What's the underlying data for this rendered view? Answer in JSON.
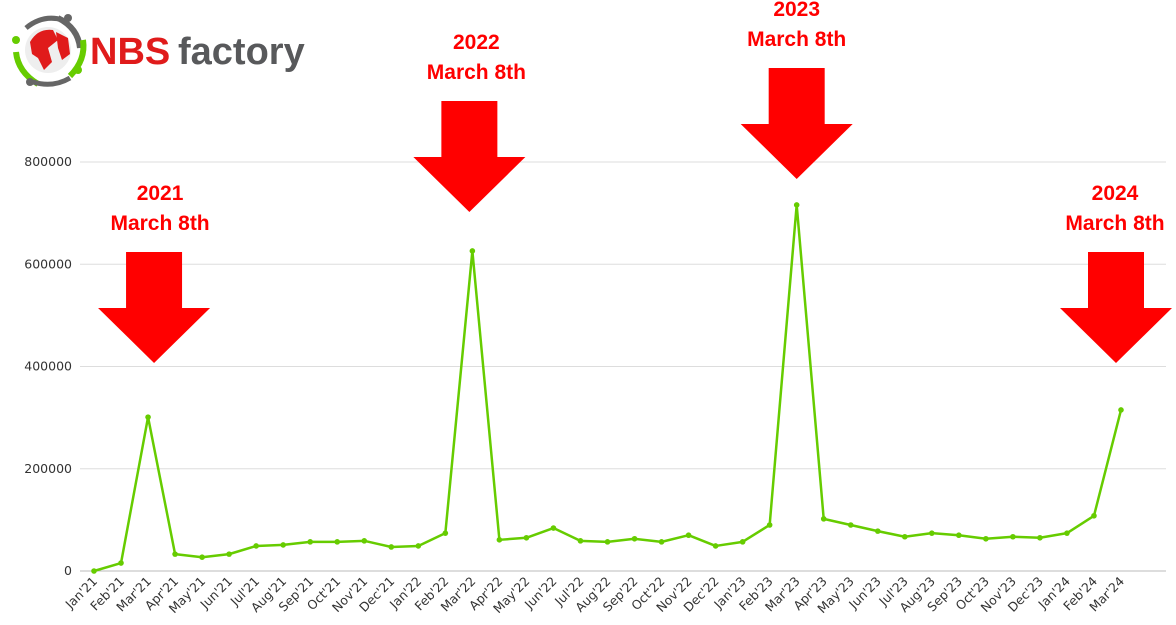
{
  "logo": {
    "text_red": "NBS",
    "text_gray": "factory"
  },
  "chart_data": {
    "type": "line",
    "title": "",
    "xlabel": "",
    "ylabel": "",
    "ylim": [
      0,
      800000
    ],
    "yticks": [
      "0",
      "200000",
      "400000",
      "600000",
      "800000"
    ],
    "grid": true,
    "line_color": "#66cc00",
    "annotation_color": "#ff0000",
    "categories": [
      "Jan'21",
      "Feb'21",
      "Mar'21",
      "Apr'21",
      "May'21",
      "Jun'21",
      "Jul'21",
      "Aug'21",
      "Sep'21",
      "Oct'21",
      "Nov'21",
      "Dec'21",
      "Jan'22",
      "Feb'22",
      "Mar'22",
      "Apr'22",
      "May'22",
      "Jun'22",
      "Jul'22",
      "Aug'22",
      "Sep'22",
      "Oct'22",
      "Nov'22",
      "Dec'22",
      "Jan'23",
      "Feb'23",
      "Mar'23",
      "Apr'23",
      "May'23",
      "Jun'23",
      "Jul'23",
      "Aug'23",
      "Sep'23",
      "Oct'23",
      "Nov'23",
      "Dec'23",
      "Jan'24",
      "Feb'24",
      "Mar'24"
    ],
    "values": [
      0,
      15600,
      301000,
      33000,
      27000,
      33000,
      49000,
      51000,
      57000,
      57000,
      59000,
      47000,
      49000,
      74000,
      626000,
      61000,
      65000,
      84000,
      59000,
      57000,
      63000,
      57000,
      70000,
      49000,
      57000,
      90000,
      716000,
      102000,
      90000,
      78000,
      67000,
      74000,
      70000,
      63000,
      67000,
      65000,
      74000,
      108000,
      315000
    ],
    "annotations": [
      {
        "category": "Mar'21",
        "year": "2021",
        "text": "March 8th"
      },
      {
        "category": "Mar'22",
        "year": "2022",
        "text": "March 8th"
      },
      {
        "category": "Mar'23",
        "year": "2023",
        "text": "March 8th"
      },
      {
        "category": "Mar'24",
        "year": "2024",
        "text": "March 8th"
      }
    ]
  }
}
